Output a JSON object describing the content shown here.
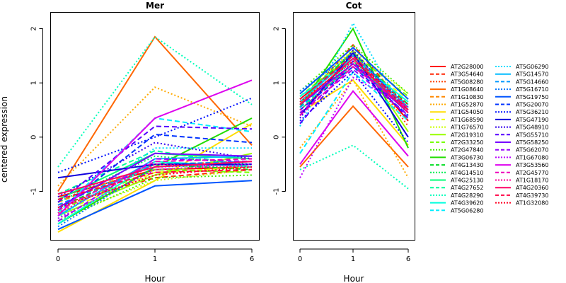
{
  "chart_data": {
    "type": "line",
    "ylabel": "centered expression",
    "ylim": [
      -1.9,
      2.3
    ],
    "yticks": [
      -1,
      0,
      1,
      2
    ],
    "legend_position": "right",
    "panels": [
      {
        "title": "Mer",
        "xlabel": "Hour",
        "x": [
          "0",
          "1",
          "6"
        ],
        "series": [
          {
            "name": "AT2G28000",
            "color": "#FF0000",
            "dash": "solid",
            "values": [
              -1.1,
              -0.6,
              -0.55
            ]
          },
          {
            "name": "AT3G54640",
            "color": "#FF2200",
            "dash": "dashed",
            "values": [
              -1.25,
              -0.75,
              -0.6
            ]
          },
          {
            "name": "AT5G08280",
            "color": "#FF4400",
            "dash": "dotted",
            "values": [
              -1.3,
              -0.7,
              -0.5
            ]
          },
          {
            "name": "AT1G08640",
            "color": "#FF6600",
            "dash": "solid",
            "values": [
              -1.0,
              1.85,
              -0.15
            ]
          },
          {
            "name": "AT1G10830",
            "color": "#FF8800",
            "dash": "dashed",
            "values": [
              -1.2,
              -0.5,
              -0.45
            ]
          },
          {
            "name": "AT1G52870",
            "color": "#FFAA00",
            "dash": "dotted",
            "values": [
              -0.9,
              0.92,
              0.2
            ]
          },
          {
            "name": "AT1G54050",
            "color": "#FFDD00",
            "dash": "solid",
            "values": [
              -1.75,
              -0.8,
              0.25
            ]
          },
          {
            "name": "AT1G68590",
            "color": "#EEFF00",
            "dash": "dashed",
            "values": [
              -1.4,
              -0.65,
              -0.55
            ]
          },
          {
            "name": "AT1G76570",
            "color": "#CCFF00",
            "dash": "dotted",
            "values": [
              -1.5,
              -0.8,
              -0.6
            ]
          },
          {
            "name": "AT2G19310",
            "color": "#99FF00",
            "dash": "solid",
            "values": [
              -1.45,
              -0.7,
              -0.3
            ]
          },
          {
            "name": "AT2G33250",
            "color": "#77FF00",
            "dash": "dashed",
            "values": [
              -1.35,
              -0.6,
              -0.65
            ]
          },
          {
            "name": "AT2G47840",
            "color": "#44EE00",
            "dash": "dotted",
            "values": [
              -1.55,
              -0.75,
              -0.7
            ]
          },
          {
            "name": "AT3G06730",
            "color": "#22DD00",
            "dash": "solid",
            "values": [
              -1.6,
              -0.55,
              0.35
            ]
          },
          {
            "name": "AT4G13430",
            "color": "#00DD22",
            "dash": "dashed",
            "values": [
              -1.3,
              -0.5,
              -0.6
            ]
          },
          {
            "name": "AT4G14510",
            "color": "#00EE55",
            "dash": "dotted",
            "values": [
              -1.2,
              -0.35,
              -0.5
            ]
          },
          {
            "name": "AT4G25130",
            "color": "#00FF77",
            "dash": "solid",
            "values": [
              -1.15,
              -0.3,
              -0.4
            ]
          },
          {
            "name": "AT4G27652",
            "color": "#00FF99",
            "dash": "dashed",
            "values": [
              -1.05,
              -0.25,
              -0.55
            ]
          },
          {
            "name": "AT4G28290",
            "color": "#00FFBB",
            "dash": "dotted",
            "values": [
              -0.55,
              1.85,
              0.6
            ]
          },
          {
            "name": "AT4G39620",
            "color": "#00FFDD",
            "dash": "solid",
            "values": [
              -1.6,
              -0.45,
              -0.55
            ]
          },
          {
            "name": "AT5G06280",
            "color": "#00EEFF",
            "dash": "dashed",
            "values": [
              -1.4,
              0.35,
              0.1
            ]
          },
          {
            "name": "AT5G06290",
            "color": "#00DDFF",
            "dash": "dotted",
            "values": [
              -1.5,
              -0.2,
              -0.2
            ]
          },
          {
            "name": "AT5G14570",
            "color": "#00BBFF",
            "dash": "solid",
            "values": [
              -1.45,
              -0.4,
              -0.35
            ]
          },
          {
            "name": "AT5G14660",
            "color": "#0099FF",
            "dash": "dashed",
            "values": [
              -1.25,
              -0.5,
              -0.45
            ]
          },
          {
            "name": "AT5G16710",
            "color": "#0077FF",
            "dash": "dotted",
            "values": [
              -1.65,
              -0.55,
              -0.5
            ]
          },
          {
            "name": "AT5G19750",
            "color": "#0055FF",
            "dash": "solid",
            "values": [
              -1.7,
              -0.9,
              -0.8
            ]
          },
          {
            "name": "AT5G20070",
            "color": "#0033FF",
            "dash": "dashed",
            "values": [
              -1.35,
              0.05,
              -0.1
            ]
          },
          {
            "name": "AT5G36210",
            "color": "#0011FF",
            "dash": "dotted",
            "values": [
              -0.65,
              0.0,
              0.72
            ]
          },
          {
            "name": "AT5G47190",
            "color": "#1100DD",
            "dash": "solid",
            "values": [
              -0.75,
              -0.5,
              -0.5
            ]
          },
          {
            "name": "AT5G48910",
            "color": "#3300EE",
            "dash": "dotted",
            "values": [
              -1.1,
              -0.1,
              -0.4
            ]
          },
          {
            "name": "AT5G55710",
            "color": "#5500FF",
            "dash": "dashed",
            "values": [
              -1.2,
              0.2,
              0.15
            ]
          },
          {
            "name": "AT5G58250",
            "color": "#7700FF",
            "dash": "solid",
            "values": [
              -1.3,
              -0.3,
              -0.35
            ]
          },
          {
            "name": "AT5G62070",
            "color": "#9900FF",
            "dash": "dashed",
            "values": [
              -1.55,
              -0.4,
              -0.45
            ]
          },
          {
            "name": "AT1G67080",
            "color": "#BB00FF",
            "dash": "dotted",
            "values": [
              -1.5,
              -0.6,
              -0.5
            ]
          },
          {
            "name": "AT3G53560",
            "color": "#DD00EE",
            "dash": "solid",
            "values": [
              -1.45,
              0.35,
              1.05
            ]
          },
          {
            "name": "AT2G45770",
            "color": "#EE00BB",
            "dash": "dashed",
            "values": [
              -1.35,
              -0.45,
              -0.4
            ]
          },
          {
            "name": "AT1G18170",
            "color": "#FF0099",
            "dash": "dotted",
            "values": [
              -1.4,
              -0.5,
              -0.55
            ]
          },
          {
            "name": "AT4G20360",
            "color": "#FF0066",
            "dash": "solid",
            "values": [
              -1.05,
              -0.55,
              -0.45
            ]
          },
          {
            "name": "AT4G39730",
            "color": "#FF0044",
            "dash": "dashed",
            "values": [
              -1.15,
              -0.65,
              -0.6
            ]
          },
          {
            "name": "AT1G32080",
            "color": "#FF0022",
            "dash": "dotted",
            "values": [
              -1.3,
              -0.7,
              -0.55
            ]
          }
        ]
      },
      {
        "title": "Cot",
        "xlabel": "Hour",
        "x": [
          "0",
          "1",
          "6"
        ],
        "series": [
          {
            "name": "AT2G28000",
            "color": "#FF0000",
            "dash": "solid",
            "values": [
              0.7,
              1.5,
              0.3
            ]
          },
          {
            "name": "AT3G54640",
            "color": "#FF2200",
            "dash": "dashed",
            "values": [
              0.6,
              1.7,
              0.5
            ]
          },
          {
            "name": "AT5G08280",
            "color": "#FF4400",
            "dash": "dotted",
            "values": [
              0.8,
              1.6,
              0.2
            ]
          },
          {
            "name": "AT1G08640",
            "color": "#FF6600",
            "dash": "solid",
            "values": [
              -0.55,
              0.57,
              -0.55
            ]
          },
          {
            "name": "AT1G10830",
            "color": "#FF8800",
            "dash": "dashed",
            "values": [
              0.4,
              1.5,
              0.6
            ]
          },
          {
            "name": "AT1G52870",
            "color": "#FFAA00",
            "dash": "dotted",
            "values": [
              -0.2,
              1.05,
              -0.75
            ]
          },
          {
            "name": "AT1G54050",
            "color": "#FFDD00",
            "dash": "solid",
            "values": [
              0.45,
              1.05,
              -0.15
            ]
          },
          {
            "name": "AT1G68590",
            "color": "#EEFF00",
            "dash": "dashed",
            "values": [
              0.7,
              1.45,
              0.7
            ]
          },
          {
            "name": "AT1G76570",
            "color": "#CCFF00",
            "dash": "dotted",
            "values": [
              0.8,
              1.6,
              0.8
            ]
          },
          {
            "name": "AT2G19310",
            "color": "#99FF00",
            "dash": "solid",
            "values": [
              0.6,
              1.6,
              0.1
            ]
          },
          {
            "name": "AT2G33250",
            "color": "#77FF00",
            "dash": "dashed",
            "values": [
              0.75,
              1.55,
              0.75
            ]
          },
          {
            "name": "AT2G47840",
            "color": "#44EE00",
            "dash": "dotted",
            "values": [
              0.85,
              1.7,
              0.8
            ]
          },
          {
            "name": "AT3G06730",
            "color": "#22DD00",
            "dash": "solid",
            "values": [
              0.55,
              2.0,
              -0.2
            ]
          },
          {
            "name": "AT4G13430",
            "color": "#00DD22",
            "dash": "dashed",
            "values": [
              0.7,
              1.55,
              0.6
            ]
          },
          {
            "name": "AT4G14510",
            "color": "#00EE55",
            "dash": "dotted",
            "values": [
              0.6,
              1.4,
              0.55
            ]
          },
          {
            "name": "AT4G25130",
            "color": "#00FF77",
            "dash": "solid",
            "values": [
              0.5,
              1.35,
              0.5
            ]
          },
          {
            "name": "AT4G27652",
            "color": "#00FF99",
            "dash": "dashed",
            "values": [
              0.55,
              1.3,
              0.6
            ]
          },
          {
            "name": "AT4G28290",
            "color": "#00FFBB",
            "dash": "dotted",
            "values": [
              -0.6,
              -0.15,
              -0.95
            ]
          },
          {
            "name": "AT4G39620",
            "color": "#00FFDD",
            "dash": "solid",
            "values": [
              0.75,
              1.45,
              0.65
            ]
          },
          {
            "name": "AT5G06280",
            "color": "#00EEFF",
            "dash": "dashed",
            "values": [
              -0.3,
              1.2,
              0.3
            ]
          },
          {
            "name": "AT5G06290",
            "color": "#00DDFF",
            "dash": "dotted",
            "values": [
              0.2,
              2.1,
              0.35
            ]
          },
          {
            "name": "AT5G14570",
            "color": "#00BBFF",
            "dash": "solid",
            "values": [
              0.65,
              1.5,
              0.55
            ]
          },
          {
            "name": "AT5G14660",
            "color": "#0099FF",
            "dash": "dashed",
            "values": [
              0.55,
              1.45,
              0.5
            ]
          },
          {
            "name": "AT5G16710",
            "color": "#0077FF",
            "dash": "dotted",
            "values": [
              0.85,
              1.55,
              0.55
            ]
          },
          {
            "name": "AT5G19750",
            "color": "#0055FF",
            "dash": "solid",
            "values": [
              0.8,
              1.65,
              0.7
            ]
          },
          {
            "name": "AT5G20070",
            "color": "#0033FF",
            "dash": "dashed",
            "values": [
              0.5,
              1.3,
              0.4
            ]
          },
          {
            "name": "AT5G36210",
            "color": "#0011FF",
            "dash": "dotted",
            "values": [
              0.3,
              1.2,
              -0.1
            ]
          },
          {
            "name": "AT5G47190",
            "color": "#1100DD",
            "dash": "solid",
            "values": [
              0.4,
              1.55,
              0.0
            ]
          },
          {
            "name": "AT5G48910",
            "color": "#3300EE",
            "dash": "dotted",
            "values": [
              0.35,
              1.6,
              0.45
            ]
          },
          {
            "name": "AT5G55710",
            "color": "#5500FF",
            "dash": "dashed",
            "values": [
              0.25,
              1.4,
              0.35
            ]
          },
          {
            "name": "AT5G58250",
            "color": "#7700FF",
            "dash": "solid",
            "values": [
              0.6,
              1.35,
              0.45
            ]
          },
          {
            "name": "AT5G62070",
            "color": "#9900FF",
            "dash": "dashed",
            "values": [
              0.45,
              1.25,
              0.4
            ]
          },
          {
            "name": "AT1G67080",
            "color": "#BB00FF",
            "dash": "dotted",
            "values": [
              -0.75,
              1.1,
              0.55
            ]
          },
          {
            "name": "AT3G53560",
            "color": "#DD00EE",
            "dash": "solid",
            "values": [
              -0.5,
              0.85,
              -0.35
            ]
          },
          {
            "name": "AT2G45770",
            "color": "#EE00BB",
            "dash": "dashed",
            "values": [
              0.4,
              1.3,
              0.5
            ]
          },
          {
            "name": "AT1G18170",
            "color": "#FF0099",
            "dash": "dotted",
            "values": [
              0.5,
              1.35,
              0.55
            ]
          },
          {
            "name": "AT4G20360",
            "color": "#FF0066",
            "dash": "solid",
            "values": [
              0.6,
              1.45,
              0.45
            ]
          },
          {
            "name": "AT4G39730",
            "color": "#FF0044",
            "dash": "dashed",
            "values": [
              0.7,
              1.5,
              0.5
            ]
          },
          {
            "name": "AT1G32080",
            "color": "#FF0022",
            "dash": "dotted",
            "values": [
              0.65,
              1.4,
              0.6
            ]
          }
        ]
      }
    ]
  }
}
